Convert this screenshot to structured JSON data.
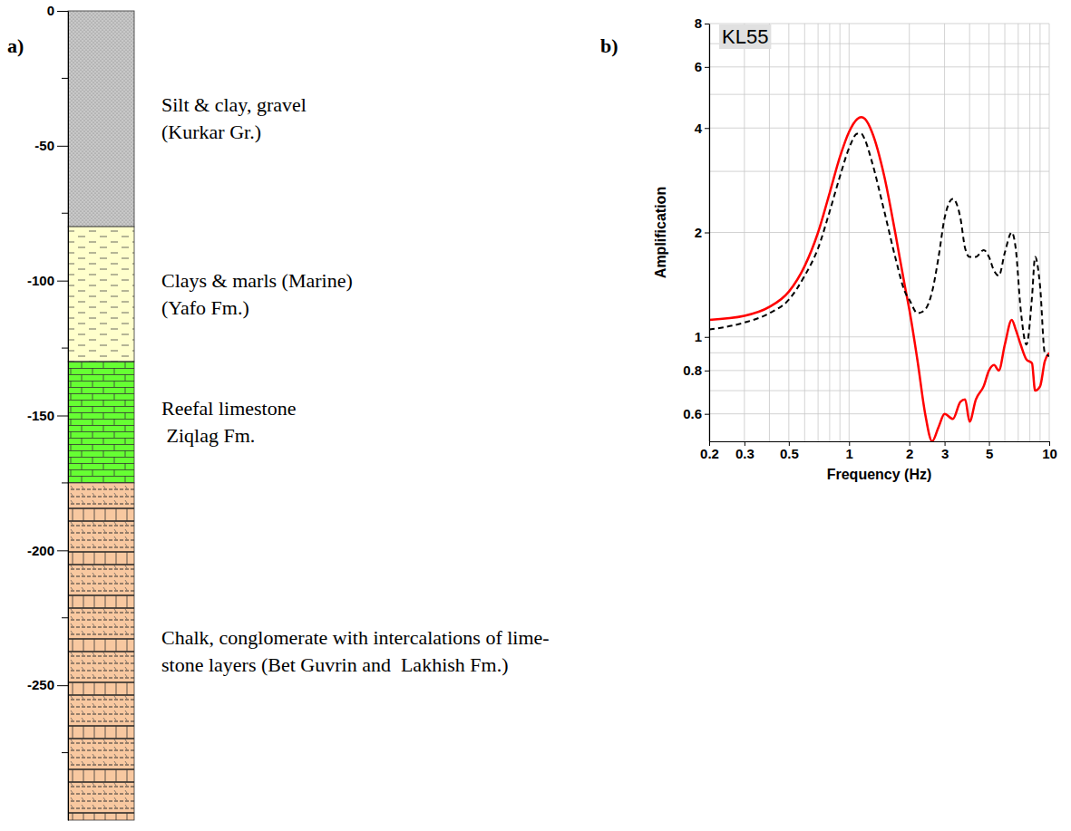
{
  "chart_data": [
    {
      "type": "strat_column",
      "panel": "a)",
      "ylim": [
        0,
        -300
      ],
      "yticks": [
        0,
        -50,
        -100,
        -150,
        -200,
        -250
      ],
      "yticks_minor": [
        -25,
        -75,
        -125,
        -175,
        -225,
        -275
      ],
      "layers": [
        {
          "top": 0,
          "bottom": -80,
          "label": [
            "Silt & clay, gravel",
            "(Kurkar Gr.)"
          ],
          "color": "#c8c8c8"
        },
        {
          "top": -80,
          "bottom": -130,
          "label": [
            "Clays & marls (Marine)",
            "(Yafo Fm.)"
          ],
          "color": "#ffffcc"
        },
        {
          "top": -130,
          "bottom": -175,
          "label": [
            "Reefal limestone",
            " Ziqlag Fm."
          ],
          "color": "#66ff33"
        },
        {
          "top": -175,
          "bottom": -300,
          "label": [
            "Chalk, conglomerate with intercalations of lime-",
            "stone layers (Bet Guvrin and  Lakhish Fm.)"
          ],
          "color": "#f8c8a0"
        }
      ]
    },
    {
      "type": "line",
      "panel": "b)",
      "title": "KL55",
      "xlabel": "Frequency (Hz)",
      "ylabel": "Amplification",
      "log": true,
      "grid": true,
      "xlim": [
        0.2,
        10
      ],
      "xticks": [
        0.2,
        0.3,
        0.5,
        1,
        2,
        3,
        5,
        10
      ],
      "xticks_minor": [
        0.4,
        0.6,
        0.7,
        0.8,
        0.9,
        4,
        6,
        7,
        8,
        9
      ],
      "ylim": [
        0.5,
        8
      ],
      "yticks": [
        0.6,
        0.8,
        1,
        2,
        4,
        6,
        8
      ],
      "yticks_minor": [
        0.7,
        0.9,
        3,
        5,
        7
      ],
      "x": [
        0.2,
        0.3,
        0.4,
        0.5,
        0.6,
        0.7,
        0.8,
        0.9,
        1.0,
        1.1,
        1.15,
        1.2,
        1.3,
        1.5,
        1.7,
        1.9,
        2.0,
        2.2,
        2.4,
        2.6,
        2.8,
        3.0,
        3.3,
        3.6,
        3.8,
        4.0,
        4.3,
        4.7,
        5.0,
        5.3,
        5.6,
        6.0,
        6.5,
        6.8,
        7.2,
        7.7,
        8.2,
        8.5,
        9.0,
        9.5,
        10
      ],
      "series": [
        {
          "color": "#ff0000",
          "line_style": "solid",
          "values": [
            1.12,
            1.15,
            1.22,
            1.35,
            1.6,
            2.0,
            2.6,
            3.3,
            3.9,
            4.25,
            4.3,
            4.25,
            3.9,
            2.9,
            2.0,
            1.4,
            1.2,
            0.85,
            0.6,
            0.5,
            0.55,
            0.6,
            0.58,
            0.65,
            0.66,
            0.57,
            0.66,
            0.72,
            0.8,
            0.83,
            0.8,
            0.95,
            1.12,
            1.05,
            0.95,
            0.86,
            0.84,
            0.7,
            0.72,
            0.85,
            0.9
          ]
        },
        {
          "color": "#000000",
          "line_style": "dashed",
          "values": [
            1.05,
            1.1,
            1.17,
            1.28,
            1.5,
            1.8,
            2.3,
            2.9,
            3.5,
            3.85,
            3.85,
            3.7,
            3.2,
            2.3,
            1.7,
            1.35,
            1.28,
            1.17,
            1.2,
            1.35,
            1.7,
            2.2,
            2.5,
            2.2,
            1.8,
            1.7,
            1.7,
            1.78,
            1.7,
            1.55,
            1.5,
            1.75,
            2.0,
            1.8,
            1.2,
            0.95,
            1.3,
            1.7,
            1.4,
            0.9,
            0.88
          ]
        }
      ]
    }
  ]
}
